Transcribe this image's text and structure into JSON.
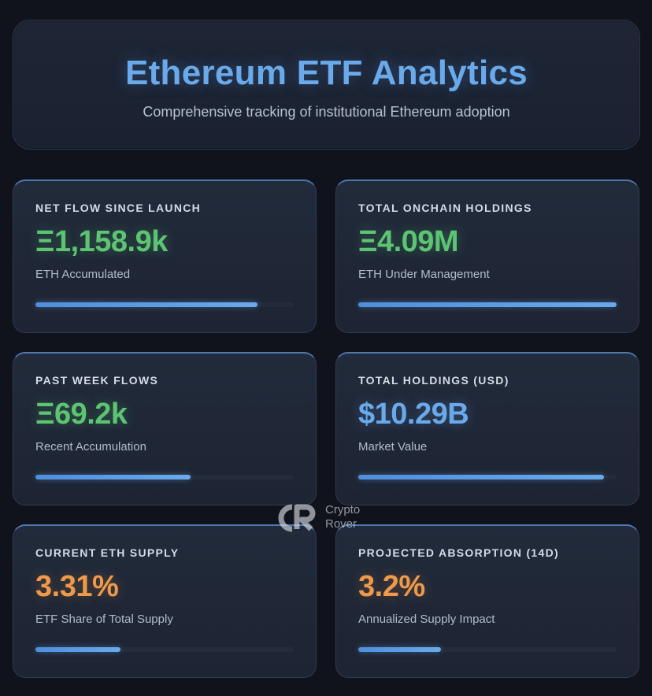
{
  "header": {
    "title": "Ethereum ETF Analytics",
    "subtitle": "Comprehensive tracking of institutional Ethereum adoption"
  },
  "cards": [
    {
      "label": "NET FLOW SINCE LAUNCH",
      "value": "Ξ1,158.9k",
      "sub": "ETH Accumulated",
      "progress": 0.86,
      "color": "green"
    },
    {
      "label": "TOTAL ONCHAIN HOLDINGS",
      "value": "Ξ4.09M",
      "sub": "ETH Under Management",
      "progress": 1.0,
      "color": "green"
    },
    {
      "label": "PAST WEEK FLOWS",
      "value": "Ξ69.2k",
      "sub": "Recent Accumulation",
      "progress": 0.6,
      "color": "green"
    },
    {
      "label": "TOTAL HOLDINGS (USD)",
      "value": "$10.29B",
      "sub": "Market Value",
      "progress": 0.95,
      "color": "blue"
    },
    {
      "label": "CURRENT ETH SUPPLY",
      "value": "3.31%",
      "sub": "ETF Share of Total Supply",
      "progress": 0.33,
      "color": "orange"
    },
    {
      "label": "PROJECTED ABSORPTION (14D)",
      "value": "3.2%",
      "sub": "Annualized Supply Impact",
      "progress": 0.32,
      "color": "orange"
    }
  ],
  "watermark": {
    "line1": "Crypto",
    "line2": "Rover",
    "icon": "crypto-rover-logo"
  },
  "colors": {
    "green": "#5cc472",
    "blue": "#6aa9ea",
    "orange": "#ef9a4a",
    "background": "#10131b"
  }
}
